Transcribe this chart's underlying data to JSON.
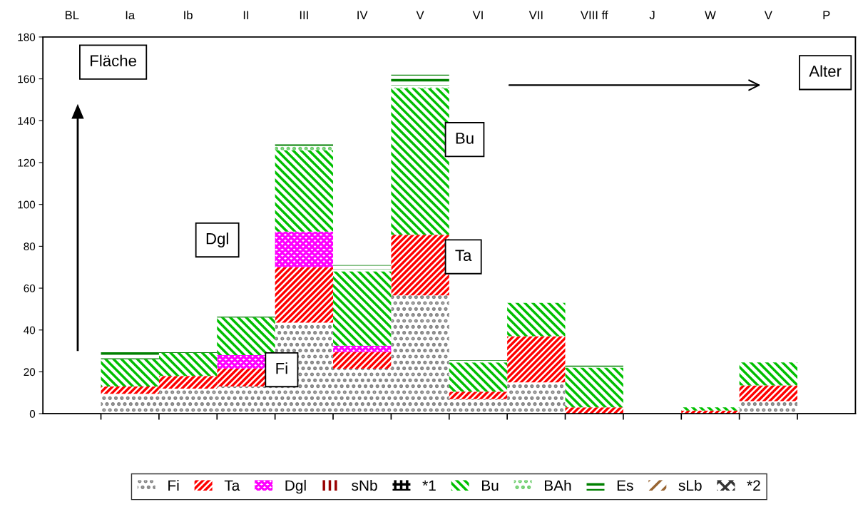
{
  "chart_data": {
    "type": "bar",
    "stacked": true,
    "categories": [
      "BL",
      "Ia",
      "Ib",
      "II",
      "III",
      "IV",
      "V",
      "VI",
      "VII",
      "VIII ff",
      "J",
      "W",
      "V",
      "P"
    ],
    "series": [
      {
        "name": "Fi",
        "color": "#808080",
        "values": [
          null,
          9.5,
          12,
          13,
          43.5,
          21.5,
          56.5,
          7,
          15,
          null,
          null,
          null,
          6,
          null
        ]
      },
      {
        "name": "Ta",
        "color": "#ff0000",
        "values": [
          null,
          3.5,
          6,
          8.5,
          26.5,
          8,
          29,
          3.5,
          22,
          3,
          null,
          1.5,
          7.5,
          null
        ]
      },
      {
        "name": "Dgl",
        "color": "#ff00ff",
        "values": [
          null,
          null,
          null,
          6.5,
          17,
          3,
          null,
          null,
          null,
          null,
          null,
          null,
          null,
          null
        ]
      },
      {
        "name": "sNb",
        "color": "#990000",
        "values": [
          null,
          null,
          null,
          null,
          null,
          null,
          null,
          null,
          null,
          null,
          null,
          null,
          null,
          null
        ]
      },
      {
        "name": "*1",
        "color": "#000000",
        "values": [
          null,
          null,
          null,
          null,
          null,
          null,
          null,
          null,
          null,
          null,
          null,
          null,
          null,
          null
        ]
      },
      {
        "name": "Bu",
        "color": "#00c000",
        "values": [
          null,
          13,
          11,
          18,
          39,
          35.5,
          70,
          14,
          16,
          19,
          null,
          1.5,
          11,
          null
        ]
      },
      {
        "name": "BAh",
        "color": "#66cc66",
        "values": [
          null,
          null,
          null,
          null,
          2,
          1,
          1.5,
          null,
          null,
          null,
          null,
          null,
          null,
          null
        ]
      },
      {
        "name": "Es",
        "color": "#008000",
        "values": [
          null,
          4.5,
          0.5,
          1.5,
          2,
          2,
          5,
          1,
          null,
          1,
          null,
          null,
          null,
          null
        ]
      },
      {
        "name": "sLb",
        "color": "#996633",
        "values": [
          null,
          null,
          null,
          null,
          null,
          null,
          null,
          null,
          null,
          null,
          null,
          null,
          null,
          null
        ]
      },
      {
        "name": "*2",
        "color": "#333333",
        "values": [
          null,
          null,
          null,
          null,
          null,
          null,
          null,
          null,
          null,
          null,
          null,
          null,
          null,
          null
        ]
      }
    ],
    "ylim": [
      0,
      180
    ],
    "yticks": [
      0,
      20,
      40,
      60,
      80,
      100,
      120,
      140,
      160,
      180
    ],
    "grid": false,
    "legend": "bottom",
    "annotations": [
      "Fläche",
      "Alter",
      "Dgl",
      "Fi",
      "Bu",
      "Ta"
    ]
  }
}
